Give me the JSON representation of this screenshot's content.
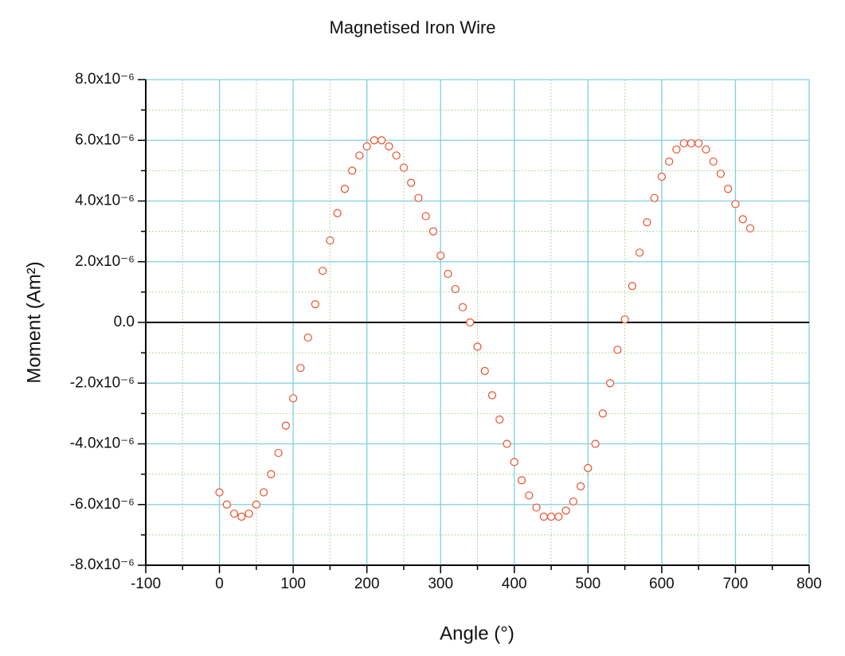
{
  "chart_data": {
    "type": "scatter",
    "title": "Magnetised Iron Wire",
    "x_label": "Angle (°)",
    "y_label": "Moment (Am²)",
    "xlim": [
      -100,
      800
    ],
    "xticks": [
      -100,
      0,
      100,
      200,
      300,
      400,
      500,
      600,
      700,
      800
    ],
    "ylim": [
      -8e-06,
      8e-06
    ],
    "yticks": [
      {
        "value": -8e-06,
        "label": "-8.0x10⁻⁶"
      },
      {
        "value": -6e-06,
        "label": "-6.0x10⁻⁶"
      },
      {
        "value": -4e-06,
        "label": "-4.0x10⁻⁶"
      },
      {
        "value": -2e-06,
        "label": "-2.0x10⁻⁶"
      },
      {
        "value": 0,
        "label": "0.0"
      },
      {
        "value": 2e-06,
        "label": "2.0x10⁻⁶"
      },
      {
        "value": 4e-06,
        "label": "4.0x10⁻⁶"
      },
      {
        "value": 6e-06,
        "label": "6.0x10⁻⁶"
      },
      {
        "value": 8e-06,
        "label": "8.0x10⁻⁶"
      }
    ],
    "grid": true,
    "series": [
      {
        "color": "#e8502a",
        "x": [
          0,
          10,
          20,
          30,
          40,
          50,
          60,
          70,
          80,
          90,
          100,
          110,
          120,
          130,
          140,
          150,
          160,
          170,
          180,
          190,
          200,
          210,
          220,
          230,
          240,
          250,
          260,
          270,
          280,
          290,
          300,
          310,
          320,
          330,
          340,
          350,
          360,
          370,
          380,
          390,
          400,
          410,
          420,
          430,
          440,
          450,
          460,
          470,
          480,
          490,
          500,
          510,
          520,
          530,
          540,
          550,
          560,
          570,
          580,
          590,
          600,
          610,
          620,
          630,
          640,
          650,
          660,
          670,
          680,
          690,
          700,
          710,
          720
        ],
        "values": [
          -5.6e-06,
          -6e-06,
          -6.3e-06,
          -6.4e-06,
          -6.3e-06,
          -6e-06,
          -5.6e-06,
          -5e-06,
          -4.3e-06,
          -3.4e-06,
          -2.5e-06,
          -1.5e-06,
          -5e-07,
          6e-07,
          1.7e-06,
          2.7e-06,
          3.6e-06,
          4.4e-06,
          5e-06,
          5.5e-06,
          5.8e-06,
          6e-06,
          6e-06,
          5.8e-06,
          5.5e-06,
          5.1e-06,
          4.6e-06,
          4.1e-06,
          3.5e-06,
          3e-06,
          2.2e-06,
          1.6e-06,
          1.1e-06,
          5e-07,
          0,
          -8e-07,
          -1.6e-06,
          -2.4e-06,
          -3.2e-06,
          -4e-06,
          -4.6e-06,
          -5.2e-06,
          -5.7e-06,
          -6.1e-06,
          -6.4e-06,
          -6.4e-06,
          -6.4e-06,
          -6.2e-06,
          -5.9e-06,
          -5.4e-06,
          -4.8e-06,
          -4e-06,
          -3e-06,
          -2e-06,
          -9e-07,
          1e-07,
          1.2e-06,
          2.3e-06,
          3.3e-06,
          4.1e-06,
          4.8e-06,
          5.3e-06,
          5.7e-06,
          5.9e-06,
          5.9e-06,
          5.9e-06,
          5.7e-06,
          5.3e-06,
          4.9e-06,
          4.4e-06,
          3.9e-06,
          3.4e-06,
          3.1e-06
        ]
      }
    ]
  }
}
